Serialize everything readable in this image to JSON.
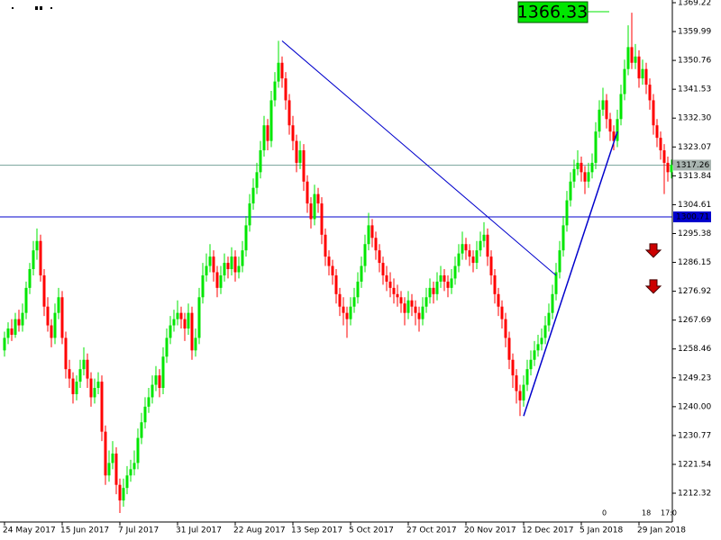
{
  "chart_data": {
    "type": "candlestick",
    "categories": [
      "24 May 2017",
      null,
      null,
      null,
      null,
      null,
      null,
      null,
      null,
      null,
      null,
      null,
      null,
      null,
      null,
      null,
      "15 Jun 2017",
      null,
      null,
      null,
      null,
      null,
      null,
      null,
      null,
      null,
      null,
      null,
      null,
      null,
      null,
      null,
      "7 Jul 2017",
      null,
      null,
      null,
      null,
      null,
      null,
      null,
      null,
      null,
      null,
      null,
      null,
      null,
      null,
      null,
      "31 Jul 2017",
      null,
      null,
      null,
      null,
      null,
      null,
      null,
      null,
      null,
      null,
      null,
      null,
      null,
      null,
      null,
      "22 Aug 2017",
      null,
      null,
      null,
      null,
      null,
      null,
      null,
      null,
      null,
      null,
      null,
      null,
      null,
      null,
      null,
      "13 Sep 2017",
      null,
      null,
      null,
      null,
      null,
      null,
      null,
      null,
      null,
      null,
      null,
      null,
      null,
      null,
      null,
      "5 Oct 2017",
      null,
      null,
      null,
      null,
      null,
      null,
      null,
      null,
      null,
      null,
      null,
      null,
      null,
      null,
      null,
      "27 Oct 2017",
      null,
      null,
      null,
      null,
      null,
      null,
      null,
      null,
      null,
      null,
      null,
      null,
      null,
      null,
      null,
      "20 Nov 2017",
      null,
      null,
      null,
      null,
      null,
      null,
      null,
      null,
      null,
      null,
      null,
      null,
      null,
      null,
      null,
      "12 Dec 2017",
      null,
      null,
      null,
      null,
      null,
      null,
      null,
      null,
      null,
      null,
      null,
      null,
      null,
      null,
      null,
      "5 Jan 2018",
      null,
      null,
      null,
      null,
      null,
      null,
      null,
      null,
      null,
      null,
      null,
      null,
      null,
      null,
      null,
      "29 Jan 2018",
      null,
      null,
      null,
      null,
      null,
      null,
      null,
      null,
      null
    ],
    "ohlc": [
      [
        1258,
        1264,
        1256,
        1262
      ],
      [
        1262,
        1267,
        1260,
        1265
      ],
      [
        1265,
        1268,
        1261,
        1263
      ],
      [
        1263,
        1270,
        1262,
        1268
      ],
      [
        1268,
        1271,
        1264,
        1266
      ],
      [
        1266,
        1273,
        1264,
        1270
      ],
      [
        1270,
        1280,
        1268,
        1278
      ],
      [
        1278,
        1286,
        1276,
        1284
      ],
      [
        1284,
        1293,
        1282,
        1290
      ],
      [
        1290,
        1297,
        1287,
        1293
      ],
      [
        1293,
        1295,
        1280,
        1282
      ],
      [
        1282,
        1284,
        1269,
        1272
      ],
      [
        1272,
        1275,
        1264,
        1266
      ],
      [
        1266,
        1268,
        1259,
        1262
      ],
      [
        1262,
        1273,
        1260,
        1270
      ],
      [
        1270,
        1278,
        1268,
        1275
      ],
      [
        1275,
        1277,
        1260,
        1262
      ],
      [
        1262,
        1264,
        1249,
        1252
      ],
      [
        1252,
        1255,
        1246,
        1249
      ],
      [
        1249,
        1251,
        1241,
        1244
      ],
      [
        1244,
        1250,
        1242,
        1248
      ],
      [
        1248,
        1255,
        1246,
        1252
      ],
      [
        1252,
        1259,
        1250,
        1255
      ],
      [
        1255,
        1257,
        1246,
        1249
      ],
      [
        1249,
        1251,
        1240,
        1243
      ],
      [
        1243,
        1249,
        1241,
        1246
      ],
      [
        1246,
        1251,
        1244,
        1248
      ],
      [
        1248,
        1250,
        1229,
        1232
      ],
      [
        1232,
        1234,
        1215,
        1218
      ],
      [
        1218,
        1226,
        1216,
        1222
      ],
      [
        1222,
        1229,
        1220,
        1225
      ],
      [
        1225,
        1227,
        1212,
        1215
      ],
      [
        1215,
        1217,
        1206,
        1210
      ],
      [
        1210,
        1217,
        1208,
        1214
      ],
      [
        1214,
        1221,
        1212,
        1218
      ],
      [
        1218,
        1223,
        1216,
        1220
      ],
      [
        1220,
        1226,
        1218,
        1222
      ],
      [
        1222,
        1233,
        1220,
        1230
      ],
      [
        1230,
        1238,
        1228,
        1235
      ],
      [
        1235,
        1243,
        1233,
        1240
      ],
      [
        1240,
        1246,
        1238,
        1243
      ],
      [
        1243,
        1250,
        1241,
        1247
      ],
      [
        1247,
        1253,
        1245,
        1250
      ],
      [
        1250,
        1252,
        1243,
        1246
      ],
      [
        1246,
        1259,
        1244,
        1256
      ],
      [
        1256,
        1265,
        1254,
        1262
      ],
      [
        1262,
        1269,
        1260,
        1266
      ],
      [
        1266,
        1271,
        1264,
        1268
      ],
      [
        1268,
        1274,
        1266,
        1270
      ],
      [
        1270,
        1272,
        1265,
        1268
      ],
      [
        1268,
        1270,
        1261,
        1265
      ],
      [
        1265,
        1273,
        1263,
        1270
      ],
      [
        1270,
        1272,
        1255,
        1258
      ],
      [
        1258,
        1265,
        1256,
        1262
      ],
      [
        1262,
        1278,
        1260,
        1275
      ],
      [
        1275,
        1286,
        1273,
        1282
      ],
      [
        1282,
        1289,
        1280,
        1285
      ],
      [
        1285,
        1292,
        1283,
        1288
      ],
      [
        1288,
        1290,
        1280,
        1283
      ],
      [
        1283,
        1285,
        1275,
        1278
      ],
      [
        1278,
        1285,
        1276,
        1282
      ],
      [
        1282,
        1289,
        1280,
        1286
      ],
      [
        1286,
        1288,
        1281,
        1284
      ],
      [
        1284,
        1291,
        1282,
        1288
      ],
      [
        1288,
        1290,
        1280,
        1283
      ],
      [
        1283,
        1288,
        1281,
        1285
      ],
      [
        1285,
        1293,
        1283,
        1290
      ],
      [
        1290,
        1301,
        1288,
        1298
      ],
      [
        1298,
        1308,
        1296,
        1305
      ],
      [
        1305,
        1313,
        1303,
        1310
      ],
      [
        1310,
        1318,
        1308,
        1315
      ],
      [
        1315,
        1325,
        1313,
        1322
      ],
      [
        1322,
        1333,
        1320,
        1330
      ],
      [
        1330,
        1332,
        1322,
        1325
      ],
      [
        1325,
        1341,
        1323,
        1338
      ],
      [
        1338,
        1347,
        1336,
        1344
      ],
      [
        1344,
        1357,
        1342,
        1350
      ],
      [
        1350,
        1352,
        1342,
        1345
      ],
      [
        1345,
        1347,
        1335,
        1338
      ],
      [
        1338,
        1340,
        1327,
        1330
      ],
      [
        1330,
        1333,
        1322,
        1325
      ],
      [
        1325,
        1327,
        1315,
        1318
      ],
      [
        1318,
        1325,
        1316,
        1322
      ],
      [
        1322,
        1324,
        1309,
        1312
      ],
      [
        1312,
        1314,
        1302,
        1305
      ],
      [
        1305,
        1307,
        1297,
        1300
      ],
      [
        1300,
        1311,
        1298,
        1308
      ],
      [
        1308,
        1310,
        1302,
        1305
      ],
      [
        1305,
        1307,
        1292,
        1295
      ],
      [
        1295,
        1297,
        1285,
        1288
      ],
      [
        1288,
        1290,
        1282,
        1285
      ],
      [
        1285,
        1287,
        1279,
        1282
      ],
      [
        1282,
        1284,
        1273,
        1276
      ],
      [
        1276,
        1278,
        1269,
        1272
      ],
      [
        1272,
        1275,
        1266,
        1270
      ],
      [
        1270,
        1272,
        1262,
        1268
      ],
      [
        1268,
        1275,
        1266,
        1272
      ],
      [
        1272,
        1278,
        1270,
        1275
      ],
      [
        1275,
        1283,
        1273,
        1280
      ],
      [
        1280,
        1288,
        1278,
        1285
      ],
      [
        1285,
        1295,
        1283,
        1292
      ],
      [
        1292,
        1302,
        1290,
        1298
      ],
      [
        1298,
        1300,
        1291,
        1294
      ],
      [
        1294,
        1296,
        1287,
        1290
      ],
      [
        1290,
        1292,
        1283,
        1286
      ],
      [
        1286,
        1288,
        1279,
        1282
      ],
      [
        1282,
        1285,
        1277,
        1280
      ],
      [
        1280,
        1283,
        1275,
        1278
      ],
      [
        1278,
        1281,
        1273,
        1276
      ],
      [
        1276,
        1279,
        1272,
        1275
      ],
      [
        1275,
        1277,
        1270,
        1273
      ],
      [
        1273,
        1275,
        1266,
        1270
      ],
      [
        1270,
        1277,
        1268,
        1274
      ],
      [
        1274,
        1276,
        1269,
        1272
      ],
      [
        1272,
        1274,
        1266,
        1270
      ],
      [
        1270,
        1272,
        1264,
        1268
      ],
      [
        1268,
        1275,
        1266,
        1272
      ],
      [
        1272,
        1278,
        1270,
        1275
      ],
      [
        1275,
        1281,
        1273,
        1278
      ],
      [
        1278,
        1280,
        1273,
        1276
      ],
      [
        1276,
        1283,
        1274,
        1280
      ],
      [
        1280,
        1285,
        1278,
        1282
      ],
      [
        1282,
        1284,
        1277,
        1280
      ],
      [
        1280,
        1282,
        1275,
        1278
      ],
      [
        1278,
        1284,
        1276,
        1281
      ],
      [
        1281,
        1288,
        1279,
        1285
      ],
      [
        1285,
        1292,
        1283,
        1289
      ],
      [
        1289,
        1296,
        1287,
        1292
      ],
      [
        1292,
        1294,
        1287,
        1290
      ],
      [
        1290,
        1292,
        1285,
        1288
      ],
      [
        1288,
        1290,
        1283,
        1286
      ],
      [
        1286,
        1293,
        1284,
        1290
      ],
      [
        1290,
        1296,
        1288,
        1293
      ],
      [
        1293,
        1299,
        1291,
        1295
      ],
      [
        1295,
        1297,
        1285,
        1288
      ],
      [
        1288,
        1290,
        1279,
        1282
      ],
      [
        1282,
        1284,
        1273,
        1276
      ],
      [
        1276,
        1278,
        1269,
        1272
      ],
      [
        1272,
        1274,
        1265,
        1268
      ],
      [
        1268,
        1270,
        1259,
        1262
      ],
      [
        1262,
        1264,
        1252,
        1255
      ],
      [
        1255,
        1257,
        1246,
        1250
      ],
      [
        1250,
        1252,
        1241,
        1245
      ],
      [
        1245,
        1247,
        1237,
        1242
      ],
      [
        1242,
        1250,
        1240,
        1247
      ],
      [
        1247,
        1255,
        1245,
        1252
      ],
      [
        1252,
        1258,
        1250,
        1255
      ],
      [
        1255,
        1261,
        1253,
        1258
      ],
      [
        1258,
        1263,
        1256,
        1260
      ],
      [
        1260,
        1265,
        1258,
        1262
      ],
      [
        1262,
        1269,
        1260,
        1266
      ],
      [
        1266,
        1273,
        1264,
        1270
      ],
      [
        1270,
        1279,
        1268,
        1276
      ],
      [
        1276,
        1286,
        1274,
        1283
      ],
      [
        1283,
        1293,
        1281,
        1290
      ],
      [
        1290,
        1301,
        1288,
        1298
      ],
      [
        1298,
        1309,
        1296,
        1306
      ],
      [
        1306,
        1315,
        1304,
        1312
      ],
      [
        1312,
        1319,
        1310,
        1316
      ],
      [
        1316,
        1322,
        1314,
        1318
      ],
      [
        1318,
        1320,
        1312,
        1315
      ],
      [
        1315,
        1317,
        1308,
        1312
      ],
      [
        1312,
        1318,
        1310,
        1315
      ],
      [
        1315,
        1321,
        1313,
        1318
      ],
      [
        1318,
        1331,
        1316,
        1328
      ],
      [
        1328,
        1338,
        1326,
        1335
      ],
      [
        1335,
        1342,
        1333,
        1338
      ],
      [
        1338,
        1340,
        1329,
        1332
      ],
      [
        1332,
        1334,
        1325,
        1328
      ],
      [
        1328,
        1330,
        1322,
        1325
      ],
      [
        1325,
        1335,
        1323,
        1332
      ],
      [
        1332,
        1343,
        1330,
        1340
      ],
      [
        1340,
        1351,
        1338,
        1348
      ],
      [
        1348,
        1362,
        1346,
        1355
      ],
      [
        1355,
        1366,
        1348,
        1350
      ],
      [
        1350,
        1356,
        1348,
        1352
      ],
      [
        1352,
        1354,
        1342,
        1345
      ],
      [
        1345,
        1351,
        1343,
        1348
      ],
      [
        1348,
        1350,
        1340,
        1343
      ],
      [
        1343,
        1345,
        1335,
        1338
      ],
      [
        1338,
        1340,
        1327,
        1330
      ],
      [
        1330,
        1332,
        1323,
        1326
      ],
      [
        1326,
        1328,
        1319,
        1322
      ],
      [
        1322,
        1324,
        1308,
        1318
      ],
      [
        1318,
        1320,
        1312,
        1315
      ],
      [
        1315,
        1319,
        1313,
        1317.26
      ]
    ],
    "up_color": "#00e600",
    "down_color": "#ff0000",
    "ylim": [
      1203.11,
      1370.08
    ],
    "yticks": [
      1369.22,
      1359.99,
      1350.76,
      1341.53,
      {
        "value": 1332.3,
        "label": "1332.30"
      },
      1323.07,
      1313.84,
      1304.61,
      1295.38,
      1286.15,
      1276.92,
      1267.69,
      1258.46,
      1249.23,
      {
        "value": 1240,
        "label": "1240.00"
      },
      1230.77,
      1221.54,
      1212.32
    ],
    "bid": 1317.26,
    "hline": 1300.71,
    "price_label": 1366.33,
    "trendlines": [
      {
        "from": [
          77,
          1357
        ],
        "to": [
          153,
          1282
        ]
      },
      {
        "from": [
          144,
          1237
        ],
        "to": [
          170,
          1328
        ]
      }
    ],
    "signals": [
      {
        "index": 180,
        "value": 1289.8
      },
      {
        "index": 180,
        "value": 1278.3
      }
    ],
    "corner_texts": [
      "0",
      "18",
      "17:0"
    ]
  }
}
